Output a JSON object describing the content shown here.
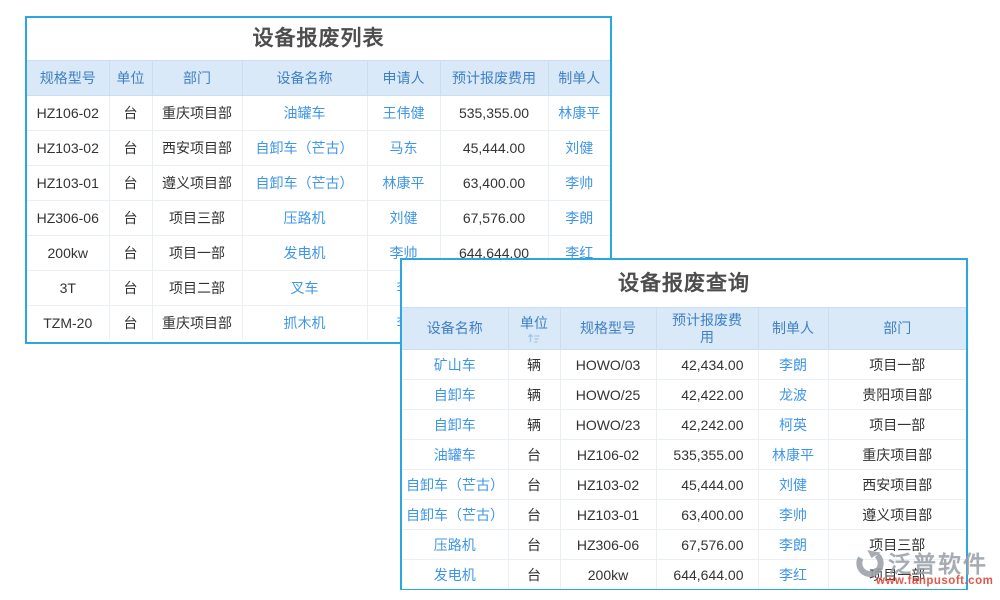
{
  "colors": {
    "panel_border": "#2aa7e0",
    "header_bg": "#d9e9f8",
    "header_text": "#4080c4",
    "link_text": "#3e96e8",
    "body_text": "#333333",
    "title_text": "#4d4d4d",
    "watermark_grey": "#9aa1a8",
    "watermark_red": "#e0402f"
  },
  "list_panel": {
    "title": "设备报废列表",
    "columns": [
      "规格型号",
      "单位",
      "部门",
      "设备名称",
      "申请人",
      "预计报废费用",
      "制单人"
    ],
    "rows": [
      [
        "HZ106-02",
        "台",
        "重庆项目部",
        "油罐车",
        "王伟健",
        "535,355.00",
        "林康平"
      ],
      [
        "HZ103-02",
        "台",
        "西安项目部",
        "自卸车（芒古）",
        "马东",
        "45,444.00",
        "刘健"
      ],
      [
        "HZ103-01",
        "台",
        "遵义项目部",
        "自卸车（芒古）",
        "林康平",
        "63,400.00",
        "李帅"
      ],
      [
        "HZ306-06",
        "台",
        "项目三部",
        "压路机",
        "刘健",
        "67,576.00",
        "李朗"
      ],
      [
        "200kw",
        "台",
        "项目一部",
        "发电机",
        "李帅",
        "644,644.00",
        "李红"
      ],
      [
        "3T",
        "台",
        "项目二部",
        "叉车",
        "李",
        "",
        ""
      ],
      [
        "TZM-20",
        "台",
        "重庆项目部",
        "抓木机",
        "李",
        "",
        ""
      ]
    ]
  },
  "query_panel": {
    "title": "设备报废查询",
    "columns": [
      "设备名称",
      "单位",
      "规格型号",
      "预计报废费用",
      "制单人",
      "部门"
    ],
    "sort_icon": "sort-toggle",
    "rows": [
      [
        "矿山车",
        "辆",
        "HOWO/03",
        "42,434.00",
        "李朗",
        "项目一部"
      ],
      [
        "自卸车",
        "辆",
        "HOWO/25",
        "42,422.00",
        "龙波",
        "贵阳项目部"
      ],
      [
        "自卸车",
        "辆",
        "HOWO/23",
        "42,242.00",
        "柯英",
        "项目一部"
      ],
      [
        "油罐车",
        "台",
        "HZ106-02",
        "535,355.00",
        "林康平",
        "重庆项目部"
      ],
      [
        "自卸车（芒古）",
        "台",
        "HZ103-02",
        "45,444.00",
        "刘健",
        "西安项目部"
      ],
      [
        "自卸车（芒古）",
        "台",
        "HZ103-01",
        "63,400.00",
        "李帅",
        "遵义项目部"
      ],
      [
        "压路机",
        "台",
        "HZ306-06",
        "67,576.00",
        "李朗",
        "项目三部"
      ],
      [
        "发电机",
        "台",
        "200kw",
        "644,644.00",
        "李红",
        "项目一部"
      ]
    ]
  },
  "watermark": {
    "name": "泛普软件",
    "url": "www.fanpusoft.com"
  }
}
